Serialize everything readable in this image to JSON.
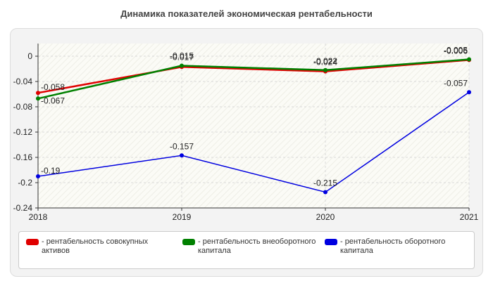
{
  "title": "Динамика показателей экономическая рентабельности",
  "chart_data": {
    "type": "line",
    "title": "Динамика показателей экономическая рентабельности",
    "categories": [
      "2018",
      "2019",
      "2020",
      "2021"
    ],
    "ylim": [
      -0.24,
      0.02
    ],
    "yticks": [
      "0",
      "-0.04",
      "-0.08",
      "-0.12",
      "-0.16",
      "-0.2",
      "-0.24"
    ],
    "grid": true,
    "legend_position": "bottom",
    "series": [
      {
        "name": "- рентабельность совокупных активов",
        "color": "#e00000",
        "values": [
          -0.058,
          -0.017,
          -0.024,
          -0.006
        ],
        "labels": [
          "-0.058",
          "-0.017",
          "-0.024",
          "-0.006"
        ]
      },
      {
        "name": "- рентабельность внеоборотного капитала",
        "color": "#008000",
        "values": [
          -0.067,
          -0.015,
          -0.022,
          -0.005
        ],
        "labels": [
          "-0.067",
          "-0.015",
          "-0.022",
          "-0.005"
        ]
      },
      {
        "name": "- рентабельность оборотного капитала",
        "color": "#0000e0",
        "values": [
          -0.19,
          -0.157,
          -0.215,
          -0.057
        ],
        "labels": [
          "-0.19",
          "-0.157",
          "-0.215",
          "-0.057"
        ]
      }
    ]
  }
}
